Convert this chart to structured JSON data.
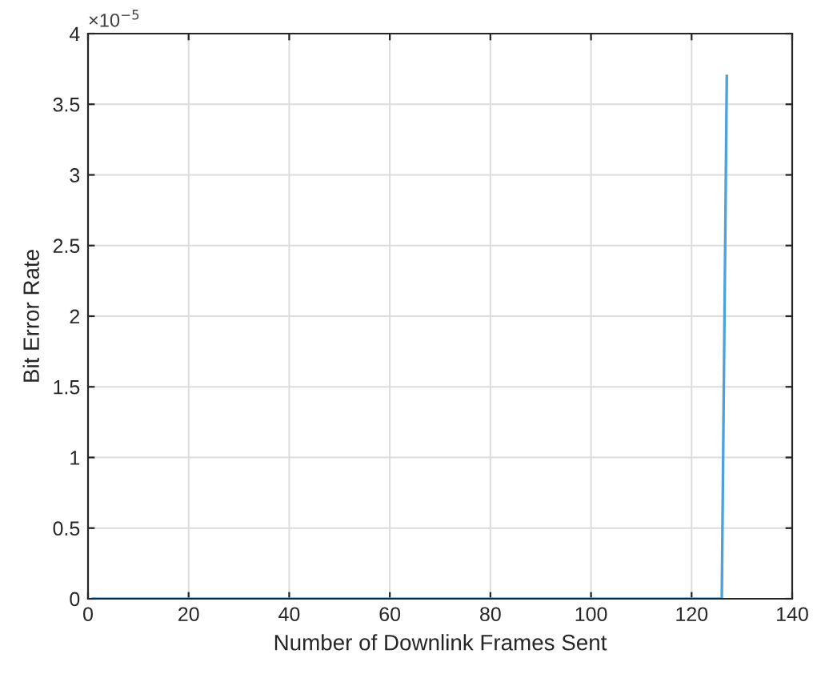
{
  "chart_data": {
    "type": "line",
    "xlabel": "Number of Downlink Frames Sent",
    "ylabel": "Bit Error Rate",
    "x": [
      1,
      126,
      127
    ],
    "series": [
      {
        "color": "#4da2da",
        "values": [
          0,
          0,
          3.7
        ]
      }
    ],
    "xlim": [
      0,
      140
    ],
    "xticks": [
      0,
      20,
      40,
      60,
      80,
      100,
      120,
      140
    ],
    "ylim": [
      0,
      4
    ],
    "yticks": [
      0,
      0.5,
      1,
      1.5,
      2,
      2.5,
      3,
      3.5,
      4
    ],
    "annotations": [
      "×10$^{−5}$"
    ],
    "grid": true,
    "legend": false,
    "marker": "none",
    "line_style": "solid"
  }
}
